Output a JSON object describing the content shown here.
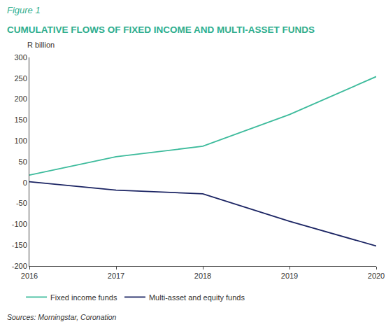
{
  "chart_data": {
    "type": "line",
    "figure_label": "Figure 1",
    "title": "CUMULATIVE FLOWS OF FIXED INCOME AND MULTI-ASSET FUNDS",
    "ylabel": "R billion",
    "source": "Sources: Morningstar, Coronation",
    "x": [
      2016,
      2017,
      2018,
      2019,
      2020
    ],
    "series": [
      {
        "name": "Fixed income funds",
        "color": "#3dbb9c",
        "values": [
          18,
          62,
          87,
          163,
          254
        ]
      },
      {
        "name": "Multi-asset and equity funds",
        "color": "#1b2463",
        "values": [
          2,
          -18,
          -27,
          -93,
          -152
        ]
      }
    ],
    "xlim": [
      2016,
      2020
    ],
    "xticks": [
      2016,
      2017,
      2018,
      2019,
      2020
    ],
    "ylim": [
      -200,
      300
    ],
    "yticks": [
      -200,
      -150,
      -100,
      -50,
      0,
      50,
      100,
      150,
      200,
      250,
      300
    ],
    "grid": false,
    "legend": "bottom"
  }
}
